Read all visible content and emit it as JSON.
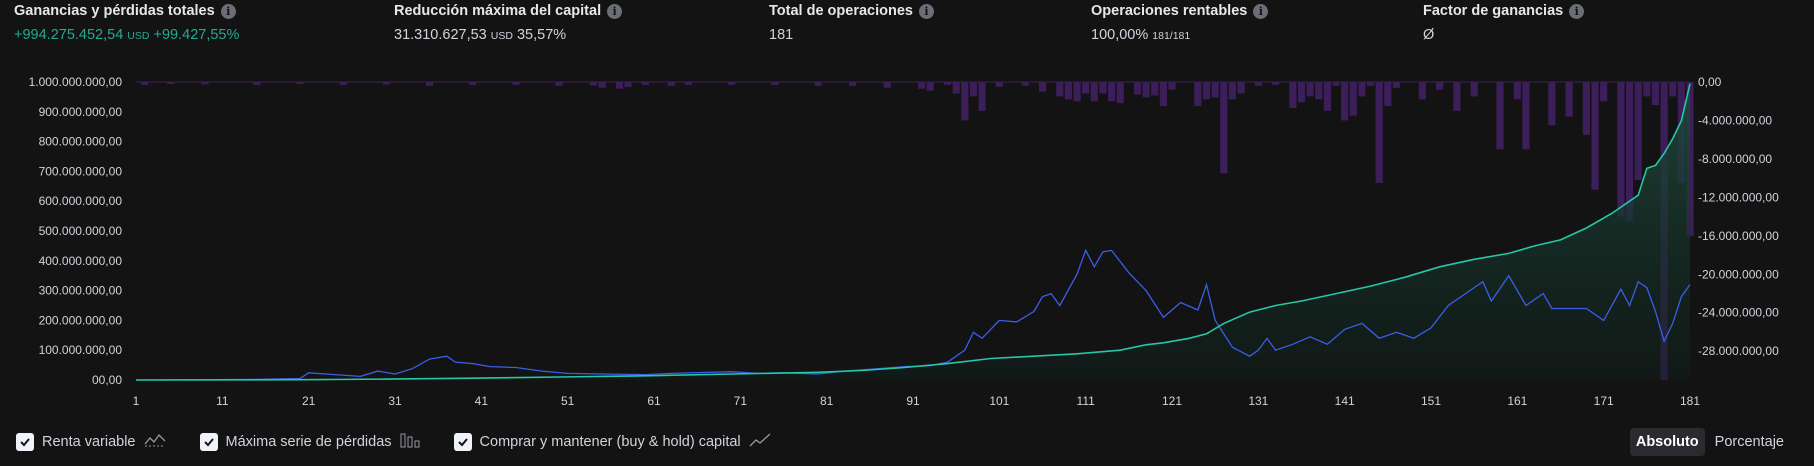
{
  "stats": [
    {
      "title": "Ganancias y pérdidas totales",
      "value": "+994.275.452,54",
      "unit": "USD",
      "extra": "+99.427,55%",
      "positive": true
    },
    {
      "title": "Reducción máxima del capital",
      "value": "31.310.627,53",
      "unit": "USD",
      "extra": "35,57%",
      "positive": false
    },
    {
      "title": "Total de operaciones",
      "value": "181",
      "unit": "",
      "extra": "",
      "positive": false
    },
    {
      "title": "Operaciones rentables",
      "value": "100,00%",
      "unit": "181/181",
      "extra": "",
      "positive": false
    },
    {
      "title": "Factor de ganancias",
      "value": "Ø",
      "unit": "",
      "extra": "",
      "positive": false
    }
  ],
  "colors": {
    "equity": "#26c6a6",
    "buyhold": "#3a5ee8",
    "drawdown": "#3c1f5a",
    "background": "#131314",
    "area_top": "#1e4a3c"
  },
  "legend": [
    {
      "label": "Renta variable",
      "icon": "equity-line-icon",
      "checked": true
    },
    {
      "label": "Máxima serie de pérdidas",
      "icon": "drawdown-bars-icon",
      "checked": true
    },
    {
      "label": "Comprar y mantener (buy & hold) capital",
      "icon": "buyhold-line-icon",
      "checked": true
    }
  ],
  "toggle": {
    "absolute": "Absoluto",
    "percentage": "Porcentaje",
    "selected": "absolute"
  },
  "chart_data": {
    "type": "line",
    "x_range": [
      1,
      181
    ],
    "x_ticks": [
      1,
      11,
      21,
      31,
      41,
      51,
      61,
      71,
      81,
      91,
      101,
      111,
      121,
      131,
      141,
      151,
      161,
      171,
      181
    ],
    "left_axis": {
      "range": [
        0,
        1000000000
      ],
      "ticks": [
        0,
        100000000,
        200000000,
        300000000,
        400000000,
        500000000,
        600000000,
        700000000,
        800000000,
        900000000,
        1000000000
      ],
      "tick_labels": [
        "00,00",
        "100.000.000,00",
        "200.000.000,00",
        "300.000.000,00",
        "400.000.000,00",
        "500.000.000,00",
        "600.000.000,00",
        "700.000.000,00",
        "800.000.000,00",
        "900.000.000,00",
        "1.000.000.000,00"
      ]
    },
    "right_axis": {
      "range": [
        -31000000,
        0
      ],
      "ticks": [
        0,
        -4000000,
        -8000000,
        -12000000,
        -16000000,
        -20000000,
        -24000000,
        -28000000
      ],
      "tick_labels": [
        "0,00",
        "-4.000.000,00",
        "-8.000.000,00",
        "-12.000.000,00",
        "-16.000.000,00",
        "-20.000.000,00",
        "-24.000.000,00",
        "-28.000.000,00"
      ]
    },
    "series": [
      {
        "name": "Renta variable",
        "type": "area",
        "axis": "left",
        "points": [
          [
            1,
            0
          ],
          [
            20,
            1000000
          ],
          [
            30,
            3000000
          ],
          [
            40,
            6000000
          ],
          [
            50,
            10000000
          ],
          [
            60,
            14000000
          ],
          [
            70,
            20000000
          ],
          [
            80,
            26000000
          ],
          [
            85,
            32000000
          ],
          [
            90,
            42000000
          ],
          [
            95,
            55000000
          ],
          [
            100,
            72000000
          ],
          [
            105,
            80000000
          ],
          [
            110,
            88000000
          ],
          [
            115,
            100000000
          ],
          [
            118,
            118000000
          ],
          [
            120,
            125000000
          ],
          [
            123,
            140000000
          ],
          [
            125,
            155000000
          ],
          [
            127,
            190000000
          ],
          [
            130,
            228000000
          ],
          [
            133,
            250000000
          ],
          [
            136,
            265000000
          ],
          [
            140,
            290000000
          ],
          [
            144,
            315000000
          ],
          [
            148,
            345000000
          ],
          [
            152,
            380000000
          ],
          [
            156,
            405000000
          ],
          [
            160,
            425000000
          ],
          [
            163,
            450000000
          ],
          [
            166,
            470000000
          ],
          [
            169,
            510000000
          ],
          [
            172,
            560000000
          ],
          [
            175,
            620000000
          ],
          [
            176,
            710000000
          ],
          [
            177,
            720000000
          ],
          [
            178,
            760000000
          ],
          [
            179,
            810000000
          ],
          [
            180,
            870000000
          ],
          [
            181,
            994275452
          ]
        ]
      },
      {
        "name": "Comprar y mantener (buy & hold) capital",
        "type": "line",
        "axis": "left",
        "points": [
          [
            1,
            0
          ],
          [
            15,
            2000000
          ],
          [
            20,
            5000000
          ],
          [
            21,
            24000000
          ],
          [
            24,
            18000000
          ],
          [
            27,
            12000000
          ],
          [
            29,
            30000000
          ],
          [
            31,
            20000000
          ],
          [
            33,
            38000000
          ],
          [
            35,
            70000000
          ],
          [
            37,
            80000000
          ],
          [
            38,
            60000000
          ],
          [
            40,
            55000000
          ],
          [
            42,
            45000000
          ],
          [
            45,
            42000000
          ],
          [
            48,
            30000000
          ],
          [
            51,
            22000000
          ],
          [
            55,
            20000000
          ],
          [
            60,
            18000000
          ],
          [
            63,
            22000000
          ],
          [
            66,
            25000000
          ],
          [
            70,
            28000000
          ],
          [
            73,
            22000000
          ],
          [
            76,
            24000000
          ],
          [
            80,
            20000000
          ],
          [
            83,
            30000000
          ],
          [
            87,
            38000000
          ],
          [
            90,
            45000000
          ],
          [
            93,
            48000000
          ],
          [
            95,
            60000000
          ],
          [
            97,
            100000000
          ],
          [
            98,
            160000000
          ],
          [
            99,
            140000000
          ],
          [
            101,
            200000000
          ],
          [
            103,
            195000000
          ],
          [
            105,
            230000000
          ],
          [
            106,
            280000000
          ],
          [
            107,
            290000000
          ],
          [
            108,
            250000000
          ],
          [
            110,
            355000000
          ],
          [
            111,
            435000000
          ],
          [
            112,
            380000000
          ],
          [
            113,
            430000000
          ],
          [
            114,
            435000000
          ],
          [
            116,
            360000000
          ],
          [
            118,
            300000000
          ],
          [
            120,
            210000000
          ],
          [
            122,
            260000000
          ],
          [
            124,
            235000000
          ],
          [
            125,
            320000000
          ],
          [
            126,
            200000000
          ],
          [
            128,
            110000000
          ],
          [
            130,
            80000000
          ],
          [
            131,
            100000000
          ],
          [
            132,
            140000000
          ],
          [
            133,
            100000000
          ],
          [
            135,
            120000000
          ],
          [
            137,
            145000000
          ],
          [
            139,
            120000000
          ],
          [
            141,
            170000000
          ],
          [
            143,
            190000000
          ],
          [
            145,
            140000000
          ],
          [
            147,
            160000000
          ],
          [
            149,
            140000000
          ],
          [
            151,
            175000000
          ],
          [
            153,
            250000000
          ],
          [
            155,
            290000000
          ],
          [
            157,
            330000000
          ],
          [
            158,
            265000000
          ],
          [
            160,
            350000000
          ],
          [
            162,
            250000000
          ],
          [
            164,
            290000000
          ],
          [
            165,
            240000000
          ],
          [
            167,
            240000000
          ],
          [
            169,
            240000000
          ],
          [
            171,
            200000000
          ],
          [
            173,
            305000000
          ],
          [
            174,
            250000000
          ],
          [
            175,
            330000000
          ],
          [
            176,
            310000000
          ],
          [
            177,
            230000000
          ],
          [
            178,
            130000000
          ],
          [
            179,
            190000000
          ],
          [
            180,
            280000000
          ],
          [
            181,
            320000000
          ]
        ]
      },
      {
        "name": "Máxima serie de pérdidas",
        "type": "bar",
        "axis": "right",
        "points": [
          [
            2,
            -300000
          ],
          [
            5,
            -200000
          ],
          [
            9,
            -250000
          ],
          [
            15,
            -300000
          ],
          [
            20,
            -200000
          ],
          [
            25,
            -300000
          ],
          [
            30,
            -250000
          ],
          [
            35,
            -400000
          ],
          [
            40,
            -300000
          ],
          [
            45,
            -300000
          ],
          [
            50,
            -400000
          ],
          [
            54,
            -350000
          ],
          [
            55,
            -600000
          ],
          [
            57,
            -700000
          ],
          [
            58,
            -500000
          ],
          [
            60,
            -300000
          ],
          [
            63,
            -400000
          ],
          [
            65,
            -300000
          ],
          [
            70,
            -300000
          ],
          [
            75,
            -300000
          ],
          [
            80,
            -400000
          ],
          [
            84,
            -400000
          ],
          [
            88,
            -600000
          ],
          [
            92,
            -700000
          ],
          [
            93,
            -900000
          ],
          [
            95,
            -300000
          ],
          [
            96,
            -1200000
          ],
          [
            97,
            -4000000
          ],
          [
            98,
            -1500000
          ],
          [
            99,
            -3000000
          ],
          [
            101,
            -500000
          ],
          [
            104,
            -400000
          ],
          [
            106,
            -1000000
          ],
          [
            108,
            -1500000
          ],
          [
            109,
            -1800000
          ],
          [
            110,
            -2000000
          ],
          [
            111,
            -1200000
          ],
          [
            112,
            -2000000
          ],
          [
            113,
            -1200000
          ],
          [
            114,
            -2000000
          ],
          [
            115,
            -2200000
          ],
          [
            117,
            -1300000
          ],
          [
            118,
            -1600000
          ],
          [
            119,
            -1400000
          ],
          [
            120,
            -2500000
          ],
          [
            121,
            -800000
          ],
          [
            124,
            -2500000
          ],
          [
            125,
            -1800000
          ],
          [
            126,
            -1600000
          ],
          [
            127,
            -9500000
          ],
          [
            128,
            -1800000
          ],
          [
            129,
            -1200000
          ],
          [
            131,
            -400000
          ],
          [
            133,
            -300000
          ],
          [
            135,
            -2700000
          ],
          [
            136,
            -2100000
          ],
          [
            137,
            -1500000
          ],
          [
            138,
            -1800000
          ],
          [
            139,
            -3000000
          ],
          [
            140,
            -400000
          ],
          [
            141,
            -4000000
          ],
          [
            142,
            -3500000
          ],
          [
            143,
            -1500000
          ],
          [
            144,
            -400000
          ],
          [
            145,
            -10500000
          ],
          [
            146,
            -2500000
          ],
          [
            147,
            -600000
          ],
          [
            150,
            -1800000
          ],
          [
            152,
            -800000
          ],
          [
            154,
            -3000000
          ],
          [
            156,
            -1500000
          ],
          [
            159,
            -7000000
          ],
          [
            161,
            -1800000
          ],
          [
            162,
            -7000000
          ],
          [
            165,
            -4500000
          ],
          [
            167,
            -3600000
          ],
          [
            169,
            -5500000
          ],
          [
            170,
            -11200000
          ],
          [
            171,
            -2000000
          ],
          [
            173,
            -14000000
          ],
          [
            174,
            -14500000
          ],
          [
            175,
            -10200000
          ],
          [
            176,
            -1500000
          ],
          [
            177,
            -2400000
          ],
          [
            178,
            -31000000
          ],
          [
            179,
            -1500000
          ],
          [
            180,
            -10500000
          ],
          [
            181,
            -16000000
          ]
        ]
      }
    ],
    "grid": false,
    "legend_position": "bottom-left"
  }
}
